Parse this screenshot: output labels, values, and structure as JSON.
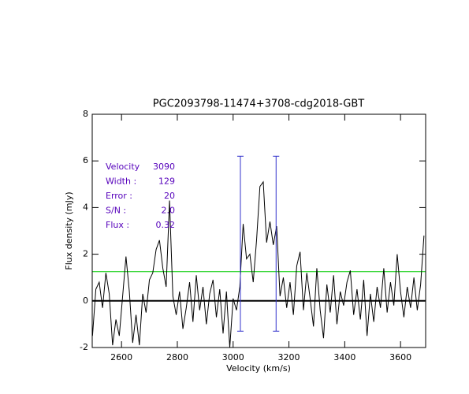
{
  "chart_data": {
    "type": "line",
    "title": "PGC2093798-11474+3708-cdg2018-GBT",
    "x_label": "Velocity (km/s)",
    "y_label": "Flux density (mJy)",
    "xlim": [
      2495,
      3690
    ],
    "ylim": [
      -2,
      8
    ],
    "xticks": [
      2600,
      2800,
      3000,
      3200,
      3400,
      3600
    ],
    "yticks": [
      -2,
      0,
      2,
      4,
      6,
      8
    ],
    "series": [
      {
        "color": "#000000",
        "x": [
          2496,
          2508,
          2520,
          2532,
          2544,
          2556,
          2568,
          2580,
          2592,
          2604,
          2616,
          2628,
          2640,
          2652,
          2664,
          2676,
          2688,
          2700,
          2712,
          2724,
          2736,
          2748,
          2760,
          2772,
          2784,
          2796,
          2808,
          2820,
          2832,
          2844,
          2856,
          2868,
          2880,
          2892,
          2904,
          2916,
          2928,
          2940,
          2952,
          2964,
          2976,
          2988,
          3000,
          3012,
          3024,
          3036,
          3048,
          3060,
          3072,
          3084,
          3096,
          3108,
          3120,
          3132,
          3144,
          3156,
          3168,
          3180,
          3192,
          3204,
          3216,
          3228,
          3240,
          3252,
          3264,
          3276,
          3288,
          3300,
          3312,
          3324,
          3336,
          3348,
          3360,
          3372,
          3384,
          3396,
          3408,
          3420,
          3432,
          3444,
          3456,
          3468,
          3480,
          3492,
          3504,
          3516,
          3528,
          3540,
          3552,
          3564,
          3576,
          3588,
          3600,
          3612,
          3624,
          3636,
          3648,
          3660,
          3672,
          3684
        ],
        "values": [
          -1.5,
          0.5,
          0.8,
          -0.3,
          1.2,
          0.3,
          -1.9,
          -0.8,
          -1.5,
          0.2,
          1.9,
          0.4,
          -1.8,
          -0.6,
          -1.9,
          0.3,
          -0.5,
          0.9,
          1.2,
          2.2,
          2.6,
          1.4,
          0.6,
          4.3,
          0.2,
          -0.6,
          0.4,
          -1.2,
          -0.3,
          0.8,
          -0.9,
          1.1,
          -0.4,
          0.6,
          -1.0,
          0.3,
          0.9,
          -0.7,
          0.5,
          -1.4,
          0.4,
          -2.0,
          0.1,
          -0.4,
          0.6,
          3.3,
          1.8,
          2.0,
          0.8,
          2.6,
          4.9,
          5.1,
          2.5,
          3.4,
          2.4,
          3.2,
          0.2,
          1.0,
          -0.3,
          0.8,
          -0.6,
          1.5,
          2.1,
          -0.4,
          1.2,
          0.1,
          -1.1,
          1.4,
          -0.4,
          -1.6,
          0.7,
          -0.5,
          1.1,
          -1.0,
          0.4,
          -0.2,
          0.8,
          1.3,
          -0.6,
          0.5,
          -0.8,
          0.9,
          -1.5,
          0.3,
          -0.9,
          0.6,
          -0.3,
          1.4,
          -0.5,
          0.8,
          -0.2,
          2.0,
          0.4,
          -0.7,
          0.6,
          -0.3,
          1.0,
          -0.4,
          0.7,
          2.8
        ]
      }
    ],
    "reference_lines": [
      {
        "value": 0,
        "color": "#000000",
        "width": 2
      },
      {
        "value": 1.25,
        "color": "#00cc00",
        "width": 1
      }
    ],
    "markers": {
      "x": [
        3026,
        3154
      ],
      "ymin": -1.3,
      "ymax": 6.2,
      "color": "#3333cc"
    },
    "annotation_color": "#5500bb",
    "annotations": [
      {
        "label": "Velocity",
        "value": "3090"
      },
      {
        "label": "Width :",
        "value": "129"
      },
      {
        "label": "Error :",
        "value": "20"
      },
      {
        "label": "S/N :",
        "value": "2.0"
      },
      {
        "label": "Flux :",
        "value": "0.32"
      }
    ]
  }
}
